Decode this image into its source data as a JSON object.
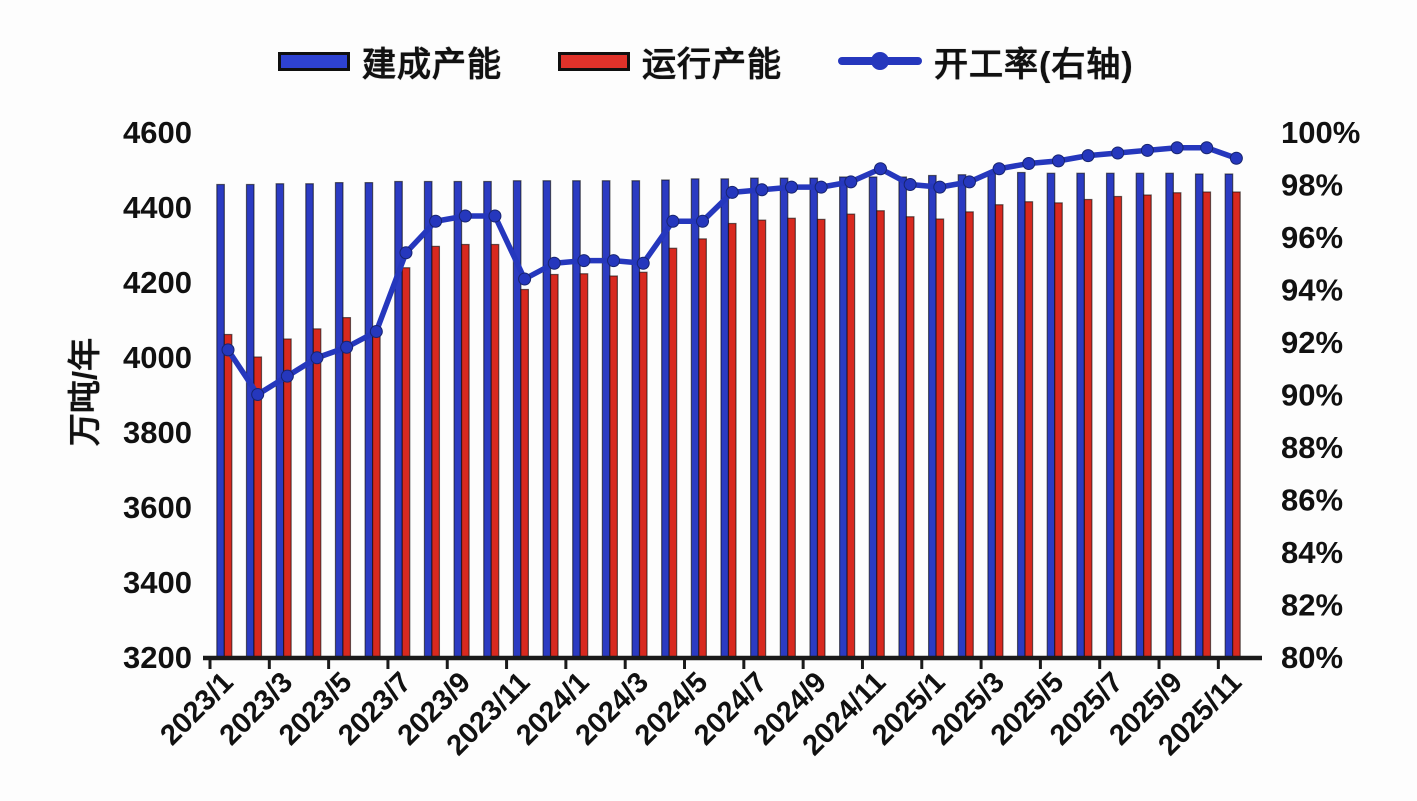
{
  "page": {
    "background": "#fdfdfd"
  },
  "legend": {
    "items": [
      {
        "label": "建成产能",
        "symbol": "bar",
        "color": "#2e42d2"
      },
      {
        "label": "运行产能",
        "symbol": "bar",
        "color": "#e0322a"
      },
      {
        "label": "开工率(右轴)",
        "symbol": "line",
        "color": "#2537bd"
      }
    ]
  },
  "chart_data": {
    "type": "bar",
    "subtype": "combo-bar-line-dual-axis",
    "title": "",
    "categories": [
      "2023/1",
      "2023/2",
      "2023/3",
      "2023/4",
      "2023/5",
      "2023/6",
      "2023/7",
      "2023/8",
      "2023/9",
      "2023/10",
      "2023/11",
      "2023/12",
      "2024/1",
      "2024/2",
      "2024/3",
      "2024/4",
      "2024/5",
      "2024/6",
      "2024/7",
      "2024/8",
      "2024/9",
      "2024/10",
      "2024/11",
      "2024/12",
      "2025/1",
      "2025/2",
      "2025/3",
      "2025/4",
      "2025/5",
      "2025/6",
      "2025/7",
      "2025/8",
      "2025/9",
      "2025/10",
      "2025/11"
    ],
    "series": [
      {
        "name": "建成产能",
        "type": "bar",
        "axis": "left",
        "color": "#2b3bc2",
        "values": [
          4460,
          4460,
          4462,
          4462,
          4465,
          4465,
          4468,
          4468,
          4468,
          4468,
          4470,
          4470,
          4470,
          4470,
          4470,
          4472,
          4475,
          4475,
          4477,
          4477,
          4477,
          4480,
          4480,
          4480,
          4484,
          4486,
          4490,
          4492,
          4490,
          4490,
          4490,
          4490,
          4490,
          4488,
          4488
        ]
      },
      {
        "name": "运行产能",
        "type": "bar",
        "axis": "left",
        "color": "#d8291f",
        "values": [
          4060,
          4000,
          4048,
          4075,
          4105,
          4065,
          4238,
          4295,
          4300,
          4300,
          4180,
          4220,
          4222,
          4216,
          4226,
          4290,
          4315,
          4356,
          4365,
          4370,
          4367,
          4381,
          4390,
          4374,
          4368,
          4387,
          4406,
          4414,
          4411,
          4420,
          4428,
          4432,
          4438,
          4440,
          4440
        ]
      },
      {
        "name": "开工率(右轴)",
        "type": "line",
        "axis": "right",
        "color": "#2537bd",
        "marker": "circle",
        "values": [
          91.7,
          90.0,
          90.7,
          91.4,
          91.8,
          92.4,
          95.4,
          96.6,
          96.8,
          96.8,
          94.4,
          95.0,
          95.1,
          95.1,
          95.0,
          96.6,
          96.6,
          97.7,
          97.8,
          97.9,
          97.9,
          98.1,
          98.6,
          98.0,
          97.9,
          98.1,
          98.6,
          98.8,
          98.9,
          99.1,
          99.2,
          99.3,
          99.4,
          99.4,
          99.0
        ]
      }
    ],
    "left_axis": {
      "label": "万吨/年",
      "min": 3200,
      "max": 4600,
      "step": 200
    },
    "right_axis": {
      "label": "",
      "min": 80,
      "max": 100,
      "step": 2,
      "suffix": "%"
    },
    "x_axis": {
      "tick_label_every": 2,
      "label_rotation_deg": -45
    },
    "grid": false,
    "legend_position": "top",
    "axis_color": "#1a1a1a"
  }
}
